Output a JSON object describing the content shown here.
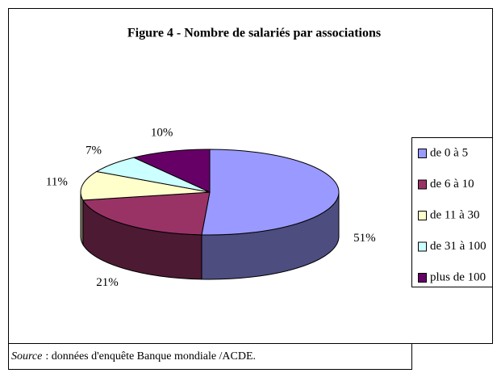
{
  "chart_data": {
    "type": "pie",
    "title": "Figure 4 - Nombre de salariés par associations",
    "categories": [
      "de 0 à 5",
      "de 6 à 10",
      "de 11 à 30",
      "de 31 à 100",
      "plus de 100"
    ],
    "values": [
      51,
      21,
      11,
      7,
      10
    ],
    "value_labels": [
      "51%",
      "21%",
      "11%",
      "7%",
      "10%"
    ],
    "colors": [
      "#9999ff",
      "#993366",
      "#ffffcc",
      "#ccffff",
      "#660066"
    ],
    "legend": "right",
    "source_label": "Source",
    "source_text": ": données d'enquête Banque mondiale /ACDE."
  }
}
